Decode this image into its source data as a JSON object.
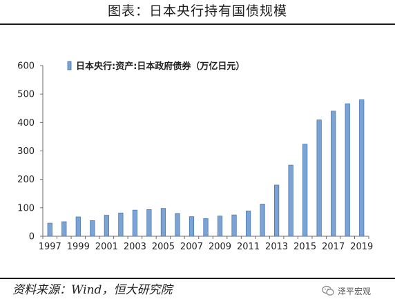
{
  "header": {
    "title": "图表：日本央行持有国债规模"
  },
  "footer": {
    "source": "资料来源：Wind，恒大研究院",
    "watermark": "泽平宏观"
  },
  "colors": {
    "bar_fill": "#7ba3d3",
    "bar_edge": "#3f6fae",
    "text": "#1f1f1f",
    "axis": "#6b6b6b"
  },
  "chart_data": {
    "type": "bar",
    "title": "",
    "xlabel": "",
    "ylabel": "",
    "legend": "top-left",
    "grid": false,
    "ylim": [
      0,
      600
    ],
    "yticks": [
      0,
      100,
      200,
      300,
      400,
      500,
      600
    ],
    "xtick_labels": [
      "1997",
      "1999",
      "2001",
      "2003",
      "2005",
      "2007",
      "2009",
      "2011",
      "2013",
      "2015",
      "2017",
      "2019"
    ],
    "categories": [
      "1997",
      "1998",
      "1999",
      "2000",
      "2001",
      "2002",
      "2003",
      "2004",
      "2005",
      "2006",
      "2007",
      "2008",
      "2009",
      "2010",
      "2011",
      "2012",
      "2013",
      "2014",
      "2015",
      "2016",
      "2017",
      "2018",
      "2019"
    ],
    "series": [
      {
        "name": "日本央行:资产:日本政府债券（万亿日元）",
        "values": [
          46,
          51,
          68,
          55,
          74,
          82,
          92,
          94,
          98,
          80,
          69,
          62,
          71,
          75,
          89,
          113,
          180,
          250,
          324,
          409,
          440,
          466,
          480
        ]
      }
    ]
  }
}
